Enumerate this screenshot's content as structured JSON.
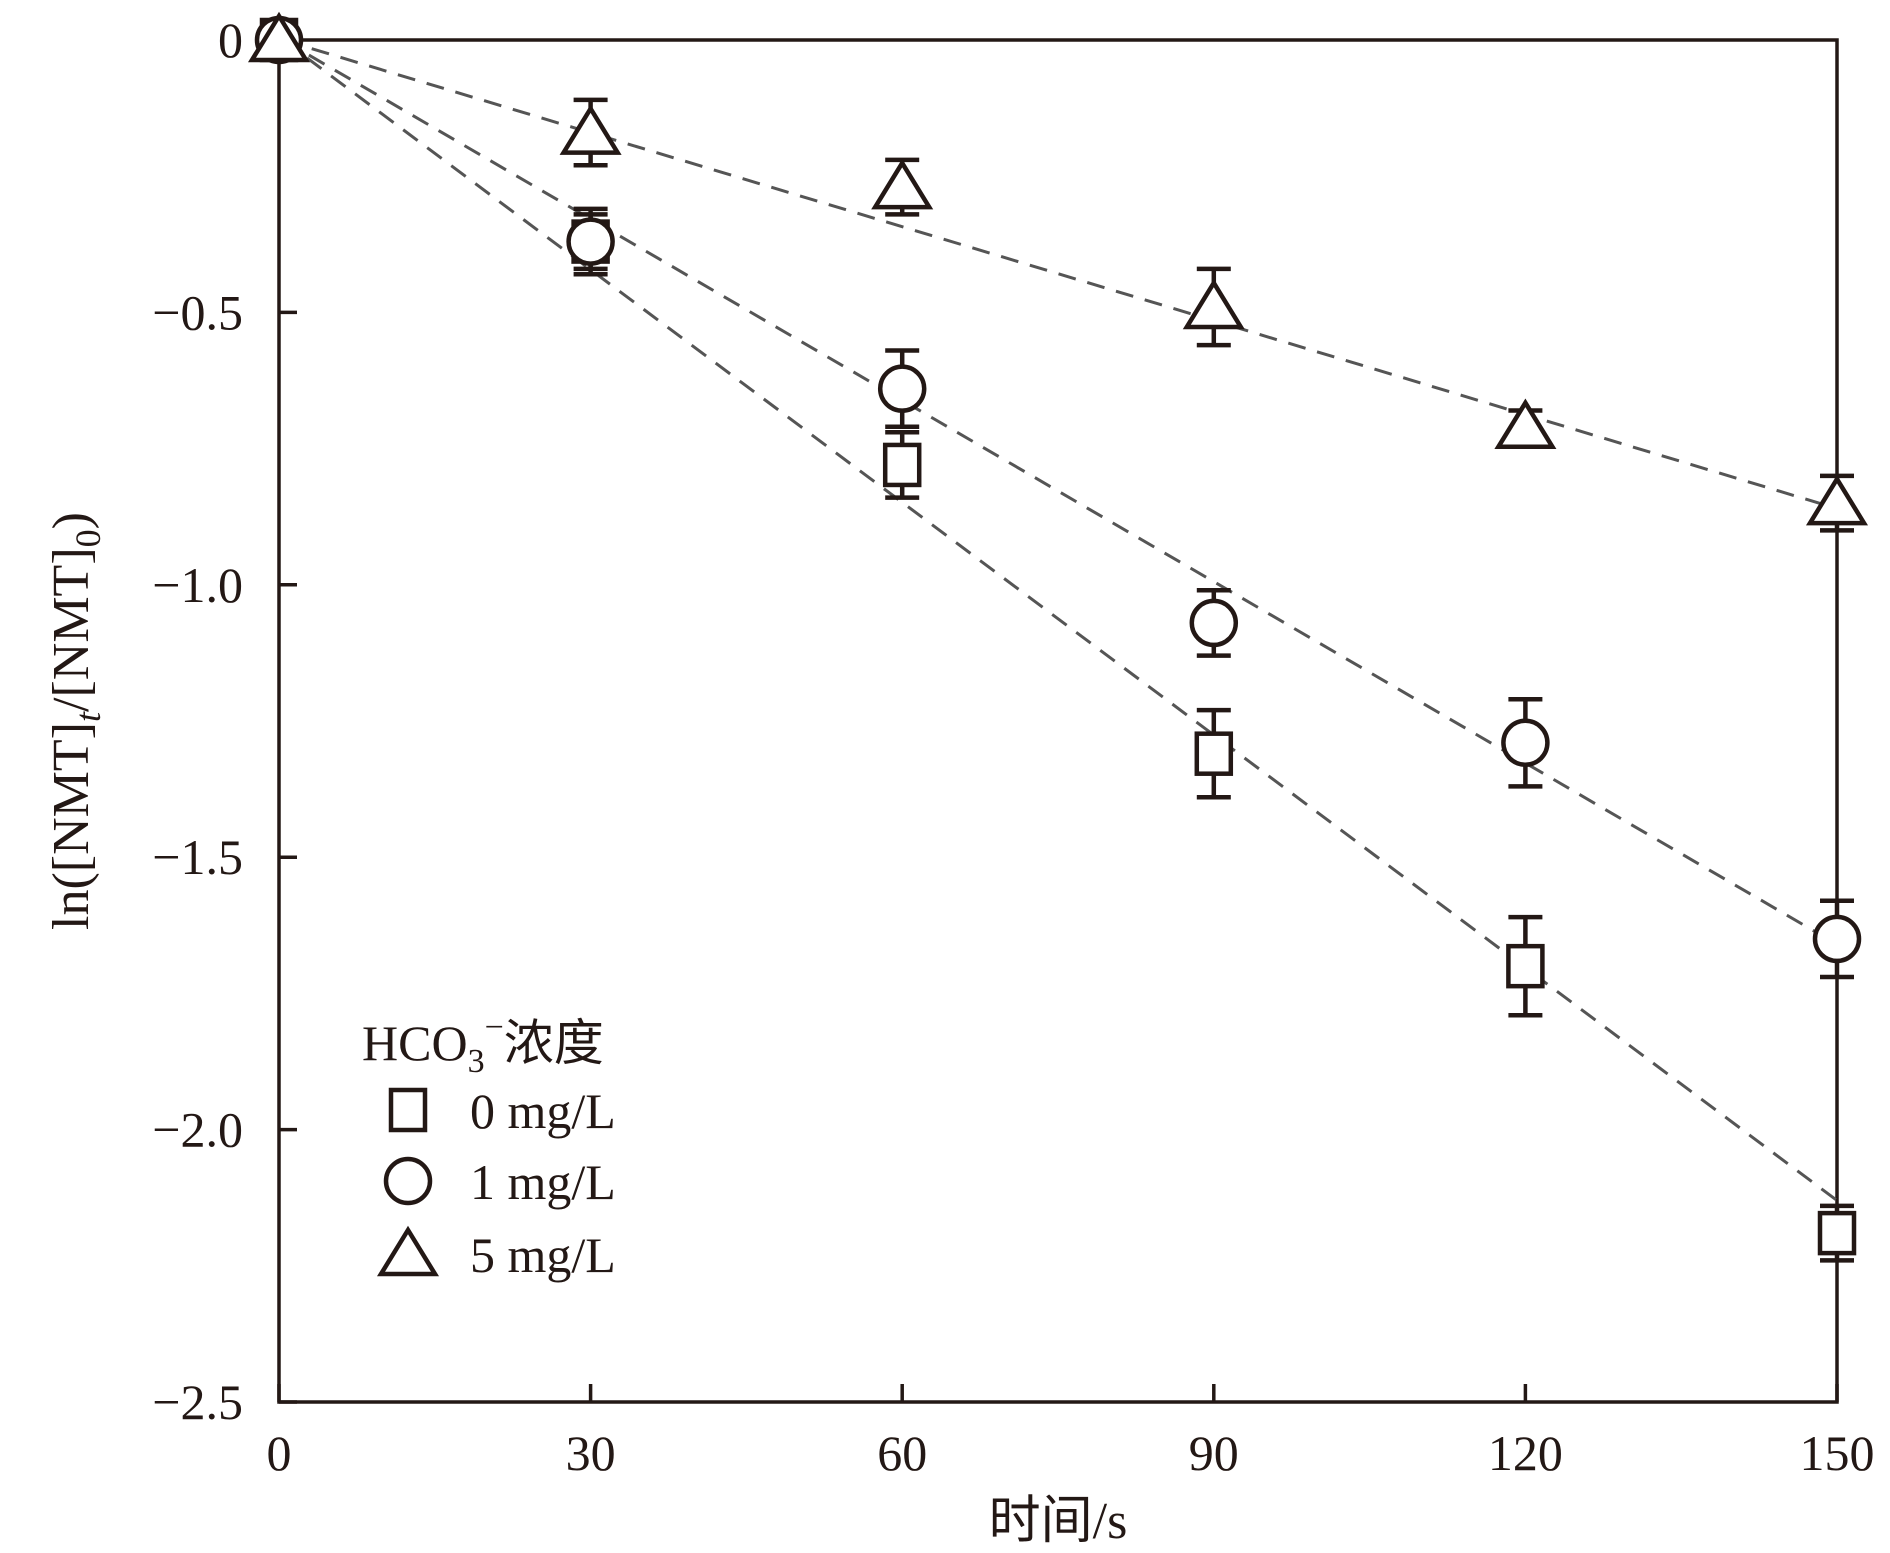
{
  "chart_data": {
    "type": "scatter",
    "xlabel": "时间/s",
    "ylabel": "ln([NMT]t/[NMT]0)",
    "ylabel_parts": {
      "pre": "ln([NMT]",
      "sub1": "t",
      "mid": "/[NMT]",
      "sub2": "0",
      "post": ")"
    },
    "xlim": [
      0,
      150
    ],
    "ylim": [
      -2.5,
      0
    ],
    "x_ticks": [
      0,
      30,
      60,
      90,
      120,
      150
    ],
    "y_ticks": [
      0,
      -0.5,
      -1.0,
      -1.5,
      -2.0,
      -2.5
    ],
    "x_tick_labels": [
      "0",
      "30",
      "60",
      "90",
      "120",
      "150"
    ],
    "y_tick_labels": [
      "0",
      "−0.5",
      "−1.0",
      "−1.5",
      "−2.0",
      "−2.5"
    ],
    "grid": false,
    "legend": {
      "placement": "bottom-left",
      "title_parts": {
        "pre": "HCO",
        "sub": "3",
        "sup": "−",
        "post": "浓度"
      }
    },
    "x": [
      0,
      30,
      60,
      90,
      120,
      150
    ],
    "series": [
      {
        "name": "0 mg/L",
        "marker": "square",
        "values": [
          0,
          -0.37,
          -0.78,
          -1.31,
          -1.7,
          -2.19
        ],
        "errors": [
          0,
          0.06,
          0.06,
          0.08,
          0.09,
          0.05
        ],
        "fit": {
          "x": [
            0,
            150
          ],
          "y": [
            0,
            -2.13
          ]
        }
      },
      {
        "name": "1 mg/L",
        "marker": "circle",
        "values": [
          0,
          -0.37,
          -0.64,
          -1.07,
          -1.29,
          -1.65
        ],
        "errors": [
          0,
          0.05,
          0.07,
          0.06,
          0.08,
          0.07
        ],
        "fit": {
          "x": [
            0,
            150
          ],
          "y": [
            0,
            -1.66
          ]
        }
      },
      {
        "name": "5 mg/L",
        "marker": "triangle",
        "values": [
          0,
          -0.17,
          -0.27,
          -0.49,
          -0.71,
          -0.85
        ],
        "errors": [
          0,
          0.06,
          0.05,
          0.07,
          0.03,
          0.05
        ],
        "fit": {
          "x": [
            0,
            150
          ],
          "y": [
            0,
            -0.86
          ]
        }
      }
    ],
    "colors": {
      "ink": "#231815",
      "fit_line": "#555555"
    }
  }
}
